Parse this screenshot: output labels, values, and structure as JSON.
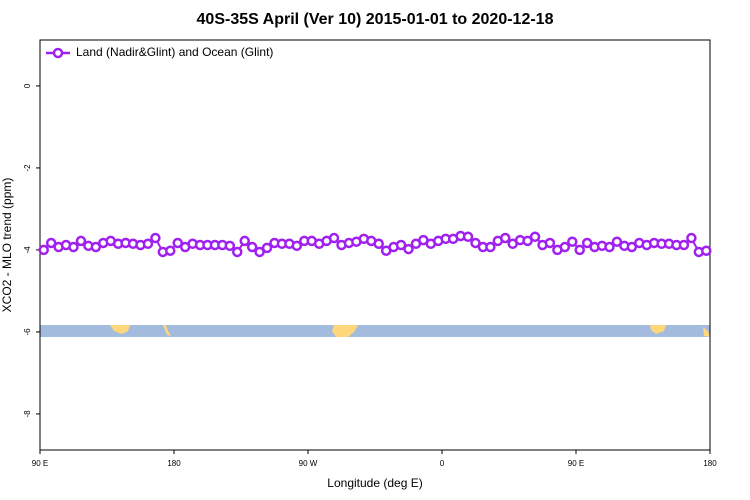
{
  "chart_data": {
    "type": "line",
    "title": "40S-35S April (Ver 10)   2015-01-01 to 2020-12-18",
    "x_label": "Longitude (deg E)",
    "y_label": "XCO2 - MLO trend (ppm)",
    "legend": "top-left",
    "xlim": [
      90,
      540
    ],
    "xticks": [
      {
        "value": 90,
        "label": "90 E"
      },
      {
        "value": 180,
        "label": "180"
      },
      {
        "value": 270,
        "label": "90 W"
      },
      {
        "value": 360,
        "label": "0"
      },
      {
        "value": 450,
        "label": "90 E"
      },
      {
        "value": 540,
        "label": "180"
      }
    ],
    "ylim": [
      -8.88,
      1.12
    ],
    "yticks": [
      0,
      -2,
      -4,
      -6,
      -8
    ],
    "series": [
      {
        "name": "Land (Nadir&Glint) and Ocean (Glint)",
        "color": "#a020f0",
        "x": [
          92.5,
          97.5,
          102.5,
          107.5,
          112.5,
          117.5,
          122.5,
          127.5,
          132.5,
          137.5,
          142.5,
          147.5,
          152.5,
          157.5,
          162.5,
          167.5,
          172.5,
          177.5,
          182.5,
          187.5,
          192.5,
          197.5,
          202.5,
          207.5,
          212.5,
          217.5,
          222.5,
          227.5,
          232.5,
          237.5,
          242.5,
          247.5,
          252.5,
          257.5,
          262.5,
          267.5,
          272.5,
          277.5,
          282.5,
          287.5,
          292.5,
          297.5,
          302.5,
          307.5,
          312.5,
          317.5,
          322.5,
          327.5,
          332.5,
          337.5,
          342.5,
          347.5,
          352.5,
          357.5,
          362.5,
          367.5,
          372.5,
          377.5,
          382.5,
          387.5,
          392.5,
          397.5,
          402.5,
          407.5,
          412.5,
          417.5,
          422.5,
          427.5,
          432.5,
          437.5,
          442.5,
          447.5,
          452.5,
          457.5,
          462.5,
          467.5,
          472.5,
          477.5,
          482.5,
          487.5,
          492.5,
          497.5,
          502.5,
          507.5,
          512.5,
          517.5,
          522.5,
          527.5,
          532.5,
          537.5
        ],
        "values": [
          -4.0,
          -3.83,
          -3.93,
          -3.88,
          -3.93,
          -3.78,
          -3.9,
          -3.93,
          -3.83,
          -3.78,
          -3.85,
          -3.83,
          -3.85,
          -3.88,
          -3.85,
          -3.71,
          -4.05,
          -4.02,
          -3.83,
          -3.93,
          -3.85,
          -3.88,
          -3.88,
          -3.88,
          -3.88,
          -3.9,
          -4.05,
          -3.78,
          -3.93,
          -4.05,
          -3.95,
          -3.83,
          -3.85,
          -3.85,
          -3.9,
          -3.78,
          -3.78,
          -3.85,
          -3.78,
          -3.71,
          -3.88,
          -3.83,
          -3.8,
          -3.73,
          -3.78,
          -3.85,
          -4.02,
          -3.93,
          -3.88,
          -3.98,
          -3.85,
          -3.76,
          -3.85,
          -3.78,
          -3.73,
          -3.73,
          -3.66,
          -3.68,
          -3.83,
          -3.93,
          -3.93,
          -3.78,
          -3.71,
          -3.85,
          -3.76,
          -3.78,
          -3.68,
          -3.88,
          -3.83,
          -4.0,
          -3.93,
          -3.8,
          -4.0,
          -3.83,
          -3.93,
          -3.9,
          -3.93,
          -3.8,
          -3.9,
          -3.93,
          -3.83,
          -3.88,
          -3.83,
          -3.85,
          -3.85,
          -3.88,
          -3.88,
          -3.71,
          -4.05,
          -4.02
        ]
      }
    ]
  }
}
